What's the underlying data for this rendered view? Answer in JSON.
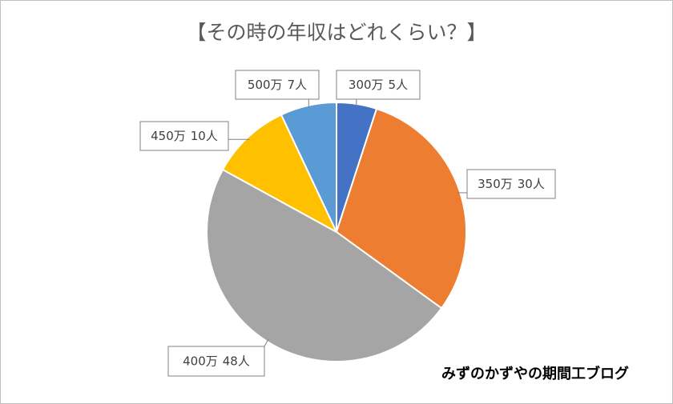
{
  "chart_data": {
    "type": "pie",
    "title": "【その時の年収はどれくらい？】",
    "categories": [
      "300万",
      "350万",
      "400万",
      "450万",
      "500万"
    ],
    "values": [
      5,
      30,
      48,
      10,
      7
    ],
    "value_labels": [
      "5人",
      "30人",
      "48人",
      "10人",
      "7人"
    ],
    "colors": [
      "#4472c4",
      "#ed7d31",
      "#a5a5a5",
      "#ffc000",
      "#5b9bd5"
    ],
    "watermark": "みずのかずやの期間工ブログ"
  }
}
